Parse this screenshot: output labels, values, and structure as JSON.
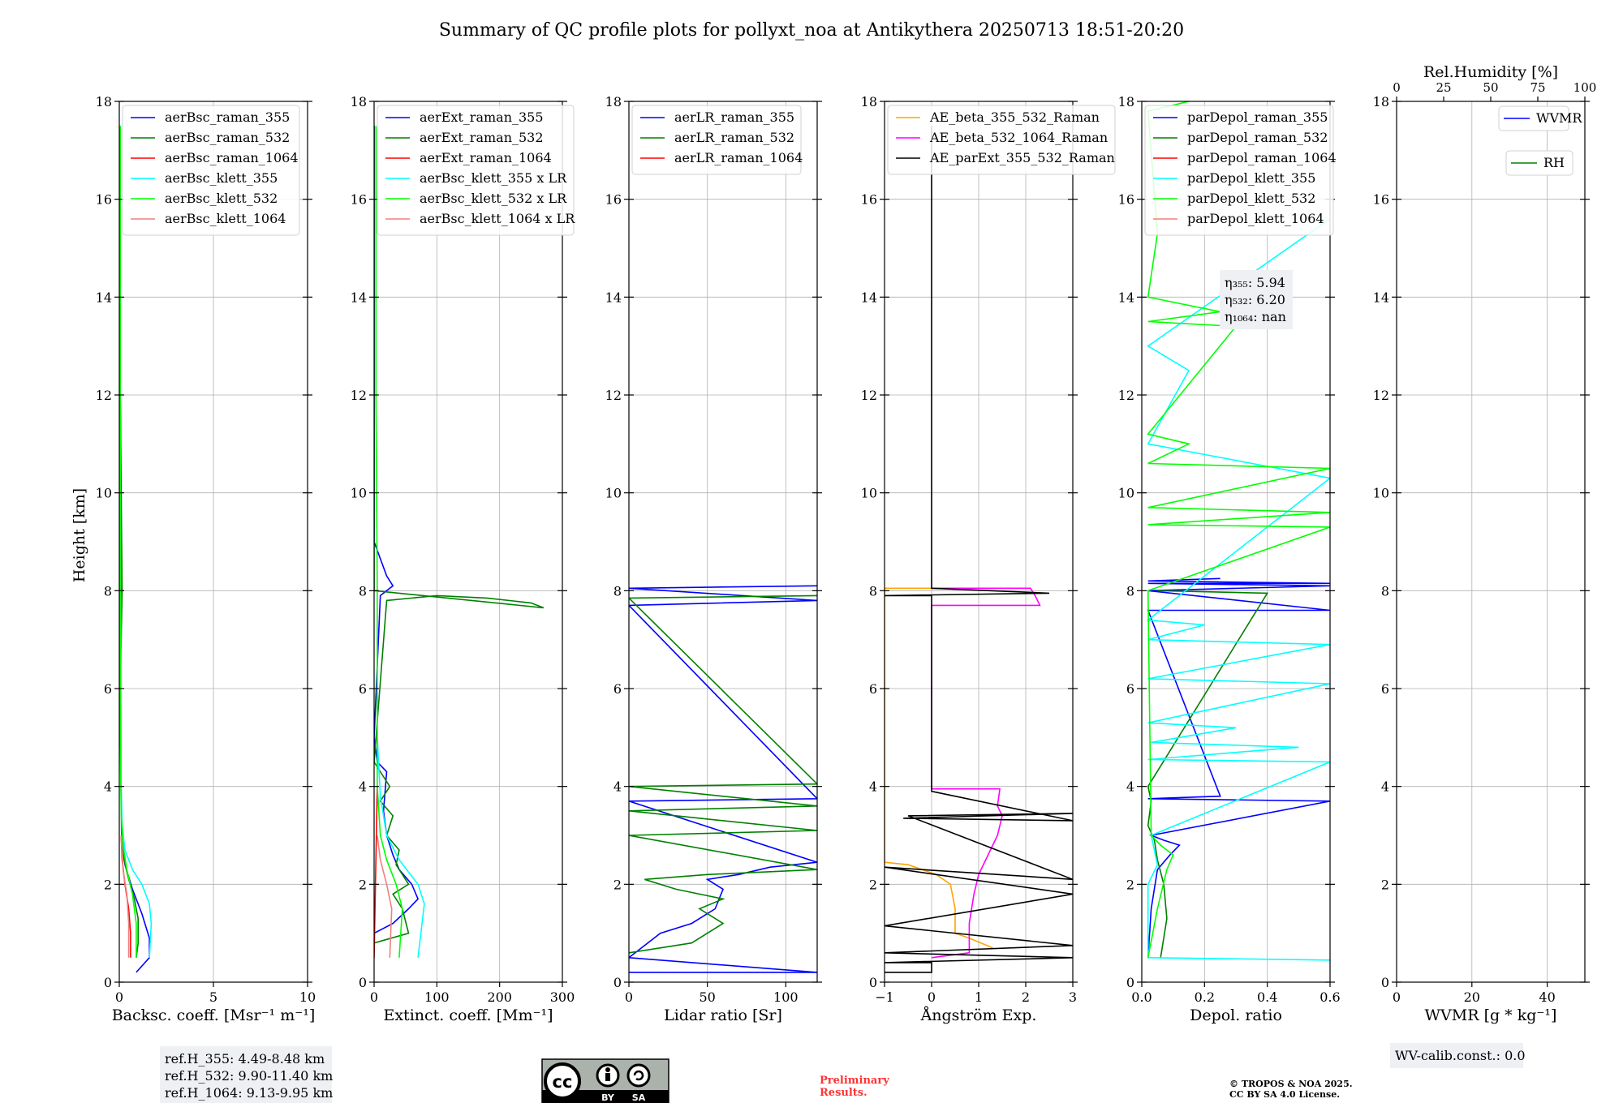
{
  "title": "Summary of QC profile plots for pollyxt_noa at Antikythera 20250713 18:51-20:20",
  "ylabel": "Height [km]",
  "chart_data": [
    {
      "type": "line",
      "xlabel": "Backsc. coeff. [Msr⁻¹ m⁻¹]",
      "xlim": [
        0,
        10
      ],
      "ylim": [
        0,
        18
      ],
      "xticks": [
        "0",
        "5",
        "10"
      ],
      "xtick_values": [
        0,
        5,
        10
      ],
      "yticks": [
        "0",
        "2",
        "4",
        "6",
        "8",
        "10",
        "12",
        "14",
        "16",
        "18"
      ],
      "grid": true,
      "legend_position": "top-left",
      "series": [
        {
          "name": "aerBsc_raman_355",
          "color": "#0000ff",
          "x": [
            0.9,
            1.6,
            1.6,
            1.2,
            0.7,
            0.3,
            0.15,
            0.1,
            0.05,
            0.1,
            0.05,
            0.05
          ],
          "y": [
            0.2,
            0.5,
            0.9,
            1.4,
            1.9,
            2.4,
            3.0,
            3.8,
            6.0,
            8.0,
            12.0,
            17.0
          ]
        },
        {
          "name": "aerBsc_raman_532",
          "color": "#008000",
          "x": [
            0.9,
            1.0,
            1.0,
            0.8,
            0.5,
            0.25,
            0.12,
            0.1,
            0.05,
            0.15,
            0.05,
            0.05
          ],
          "y": [
            0.5,
            0.8,
            1.3,
            1.7,
            2.1,
            2.5,
            3.0,
            3.8,
            6.0,
            8.0,
            12.0,
            17.5
          ]
        },
        {
          "name": "aerBsc_raman_1064",
          "color": "#ff0000",
          "x": [
            0.6,
            0.6,
            0.5,
            0.3,
            0.15,
            0.1
          ],
          "y": [
            0.5,
            1.0,
            1.5,
            2.0,
            2.5,
            3.0
          ]
        },
        {
          "name": "aerBsc_klett_355",
          "color": "#00ffff",
          "x": [
            1.6,
            1.7,
            1.6,
            1.2,
            0.7,
            0.3,
            0.15,
            0.1,
            0.05
          ],
          "y": [
            0.5,
            1.2,
            1.6,
            2.0,
            2.3,
            2.7,
            3.2,
            4.0,
            10.0
          ]
        },
        {
          "name": "aerBsc_klett_532",
          "color": "#00ff00",
          "x": [
            0.9,
            0.9,
            0.7,
            0.4,
            0.2,
            0.1,
            0.05,
            0.05
          ],
          "y": [
            0.5,
            1.2,
            1.8,
            2.3,
            2.8,
            3.5,
            5.0,
            17.5
          ]
        },
        {
          "name": "aerBsc_klett_1064",
          "color": "#f08080",
          "x": [
            0.5,
            0.5,
            0.4,
            0.2,
            0.1
          ],
          "y": [
            0.5,
            1.2,
            1.8,
            2.3,
            3.0
          ]
        }
      ],
      "annotation": [
        "ref.H_355: 4.49-8.48 km",
        "ref.H_532: 9.90-11.40 km",
        "ref.H_1064: 9.13-9.95 km"
      ]
    },
    {
      "type": "line",
      "xlabel": "Extinct. coeff. [Mm⁻¹]",
      "xlim": [
        0,
        300
      ],
      "ylim": [
        0,
        18
      ],
      "xticks": [
        "0",
        "100",
        "200",
        "300"
      ],
      "xtick_values": [
        0,
        100,
        200,
        300
      ],
      "yticks": [
        "0",
        "2",
        "4",
        "6",
        "8",
        "10",
        "12",
        "14",
        "16",
        "18"
      ],
      "grid": true,
      "legend_position": "top-left",
      "series": [
        {
          "name": "aerExt_raman_355",
          "color": "#0000ff",
          "x": [
            0,
            30,
            55,
            70,
            60,
            40,
            30,
            20,
            15,
            20,
            5,
            0,
            10,
            30,
            20,
            0,
            0
          ],
          "y": [
            1.0,
            1.2,
            1.5,
            1.7,
            2.0,
            2.3,
            2.6,
            3.0,
            3.5,
            4.3,
            4.5,
            5.0,
            7.9,
            8.1,
            8.3,
            9.0,
            17.5
          ]
        },
        {
          "name": "aerExt_raman_532",
          "color": "#008000",
          "x": [
            0,
            55,
            45,
            30,
            55,
            35,
            40,
            20,
            30,
            10,
            25,
            0,
            20,
            100,
            180,
            250,
            270,
            0,
            0
          ],
          "y": [
            0.8,
            1.0,
            1.5,
            1.8,
            2.0,
            2.4,
            2.7,
            3.0,
            3.4,
            3.7,
            4.0,
            4.5,
            7.8,
            7.9,
            7.85,
            7.75,
            7.65,
            8.0,
            17.5
          ]
        },
        {
          "name": "aerExt_raman_1064",
          "color": "#ff0000",
          "x": [
            0,
            5
          ],
          "y": [
            0.5,
            4.0
          ]
        },
        {
          "name": "aerBsc_klett_355 x LR",
          "color": "#00ffff",
          "x": [
            70,
            80,
            70,
            40,
            20,
            10,
            5
          ],
          "y": [
            0.5,
            1.6,
            2.0,
            2.5,
            3.0,
            3.8,
            5.0
          ]
        },
        {
          "name": "aerBsc_klett_532 x LR",
          "color": "#00ff00",
          "x": [
            40,
            45,
            35,
            20,
            10,
            5,
            5,
            3,
            3
          ],
          "y": [
            0.5,
            1.5,
            2.0,
            2.5,
            3.0,
            4.0,
            8.0,
            12.0,
            17.5
          ]
        },
        {
          "name": "aerBsc_klett_1064 x LR",
          "color": "#f08080",
          "x": [
            25,
            28,
            20,
            10,
            5
          ],
          "y": [
            0.5,
            1.5,
            2.0,
            2.5,
            3.0
          ]
        }
      ]
    },
    {
      "type": "line",
      "xlabel": "Lidar ratio [Sr]",
      "xlim": [
        0,
        120
      ],
      "ylim": [
        0,
        18
      ],
      "xticks": [
        "0",
        "50",
        "100"
      ],
      "xtick_values": [
        0,
        50,
        100
      ],
      "yticks": [
        "0",
        "2",
        "4",
        "6",
        "8",
        "10",
        "12",
        "14",
        "16",
        "18"
      ],
      "grid": true,
      "legend_position": "top-left",
      "series": [
        {
          "name": "aerLR_raman_355",
          "color": "#0000ff",
          "x": [
            0,
            120,
            0,
            20,
            40,
            55,
            60,
            50,
            70,
            90,
            120,
            0,
            120,
            0,
            120,
            0,
            120
          ],
          "y": [
            0.2,
            0.2,
            0.5,
            1.0,
            1.2,
            1.5,
            1.9,
            2.1,
            2.2,
            2.35,
            2.45,
            3.7,
            3.75,
            7.7,
            7.8,
            8.05,
            8.1
          ]
        },
        {
          "name": "aerLR_raman_532",
          "color": "#008000",
          "x": [
            0,
            40,
            60,
            45,
            60,
            30,
            10,
            50,
            120,
            0,
            120,
            0,
            120,
            0,
            120,
            0,
            120
          ],
          "y": [
            0.6,
            0.8,
            1.2,
            1.5,
            1.7,
            1.9,
            2.1,
            2.2,
            2.3,
            3.0,
            3.1,
            3.5,
            3.6,
            4.0,
            4.05,
            7.85,
            7.9
          ]
        },
        {
          "name": "aerLR_raman_1064",
          "color": "#ff0000",
          "x": [],
          "y": []
        }
      ]
    },
    {
      "type": "line",
      "xlabel": "Ångström Exp.",
      "xlim": [
        -1,
        3
      ],
      "ylim": [
        0,
        18
      ],
      "xticks": [
        "−1",
        "0",
        "1",
        "2",
        "3"
      ],
      "xtick_values": [
        -1,
        0,
        1,
        2,
        3
      ],
      "yticks": [
        "0",
        "2",
        "4",
        "6",
        "8",
        "10",
        "12",
        "14",
        "16",
        "18"
      ],
      "grid": true,
      "legend_position": "top-left",
      "series": [
        {
          "name": "AE_beta_355_532_Raman",
          "color": "#ffa500",
          "x": [
            1.3,
            0.8,
            0.5,
            0.5,
            0.4,
            0.1,
            -0.5,
            -1.0,
            -1.0,
            0.0
          ],
          "y": [
            0.7,
            0.9,
            1.0,
            1.5,
            2.0,
            2.2,
            2.4,
            2.45,
            8.05,
            8.05
          ]
        },
        {
          "name": "AE_beta_532_1064_Raman",
          "color": "#ff00ff",
          "x": [
            0.0,
            0.8,
            0.8,
            0.9,
            1.0,
            1.2,
            1.4,
            1.5,
            1.4,
            1.45,
            0.0,
            0.0,
            2.3,
            2.2,
            2.1,
            0.0
          ],
          "y": [
            0.5,
            0.6,
            1.2,
            1.8,
            2.2,
            2.6,
            3.0,
            3.4,
            3.6,
            3.95,
            3.95,
            7.7,
            7.7,
            7.9,
            8.05,
            8.05
          ]
        },
        {
          "name": "AE_parExt_355_532_Raman",
          "color": "#000000",
          "x": [
            -1,
            0,
            0,
            -1,
            3,
            -1,
            3,
            -1,
            3,
            -1,
            3,
            -0.5,
            3,
            -0.6,
            3,
            0.0,
            0.0,
            -1.0,
            2.5,
            0.0,
            0.0
          ],
          "y": [
            0.2,
            0.2,
            0.4,
            0.4,
            0.5,
            0.6,
            0.75,
            1.15,
            1.8,
            2.35,
            2.1,
            3.4,
            3.45,
            3.35,
            3.3,
            3.9,
            7.9,
            7.9,
            7.95,
            8.05,
            17.5
          ]
        }
      ]
    },
    {
      "type": "line",
      "xlabel": "Depol. ratio",
      "xlim": [
        0.0,
        0.6
      ],
      "ylim": [
        0,
        18
      ],
      "xticks": [
        "0.0",
        "0.2",
        "0.4",
        "0.6"
      ],
      "xtick_values": [
        0.0,
        0.2,
        0.4,
        0.6
      ],
      "yticks": [
        "0",
        "2",
        "4",
        "6",
        "8",
        "10",
        "12",
        "14",
        "16",
        "18"
      ],
      "grid": true,
      "legend_position": "top-left",
      "series": [
        {
          "name": "parDepol_raman_355",
          "color": "#0000ff",
          "x": [
            0.02,
            0.03,
            0.05,
            0.09,
            0.12,
            0.07,
            0.03,
            0.6,
            0.02,
            0.25,
            0.02,
            0.6,
            0.02,
            0.6,
            0.02,
            0.6,
            0.02,
            0.25
          ],
          "y": [
            0.5,
            1.5,
            2.3,
            2.6,
            2.8,
            2.9,
            3.0,
            3.7,
            3.75,
            3.8,
            7.6,
            7.6,
            8.0,
            8.1,
            8.15,
            8.15,
            8.2,
            8.25
          ]
        },
        {
          "name": "parDepol_raman_532",
          "color": "#008000",
          "x": [
            0.06,
            0.08,
            0.07,
            0.05,
            0.04,
            0.02,
            0.03,
            0.02,
            0.4,
            0.05
          ],
          "y": [
            0.5,
            1.3,
            2.0,
            2.5,
            2.9,
            3.2,
            3.7,
            4.0,
            7.95,
            8.0
          ]
        },
        {
          "name": "parDepol_raman_1064",
          "color": "#ff0000",
          "x": [],
          "y": []
        },
        {
          "name": "parDepol_klett_355",
          "color": "#00ffff",
          "x": [
            0.6,
            0.02,
            0.02,
            0.05,
            0.03,
            0.6,
            0.02,
            0.5,
            0.03,
            0.3,
            0.02,
            0.6,
            0.02,
            0.6,
            0.02,
            0.2,
            0.02,
            0.6,
            0.02,
            0.15,
            0.02,
            0.6
          ],
          "y": [
            0.45,
            0.5,
            2.0,
            2.4,
            3.0,
            4.5,
            4.55,
            4.8,
            4.9,
            5.2,
            5.3,
            6.1,
            6.2,
            6.9,
            7.0,
            7.3,
            7.4,
            10.3,
            11.0,
            12.5,
            13.0,
            15.6
          ]
        },
        {
          "name": "parDepol_klett_532",
          "color": "#00ff00",
          "x": [
            0.02,
            0.05,
            0.08,
            0.1,
            0.06,
            0.03,
            0.02,
            0.6,
            0.02,
            0.6,
            0.02,
            0.6,
            0.02,
            0.15,
            0.02,
            0.3,
            0.02,
            0.25,
            0.02,
            0.05,
            0.02,
            0.15
          ],
          "y": [
            0.5,
            1.5,
            2.3,
            2.6,
            2.8,
            3.0,
            8.0,
            9.3,
            9.35,
            9.6,
            9.7,
            10.5,
            10.6,
            11.0,
            11.2,
            13.4,
            13.5,
            13.7,
            14.0,
            15.3,
            17.8,
            18.0
          ]
        },
        {
          "name": "parDepol_klett_1064",
          "color": "#f08080",
          "x": [],
          "y": []
        }
      ],
      "annotation": [
        "η₃₅₅: 5.94",
        "η₅₃₂: 6.20",
        "η₁₀₆₄: nan"
      ]
    },
    {
      "type": "line",
      "xlabel": "WVMR [g * kg⁻¹]",
      "xlim": [
        0,
        50
      ],
      "ylim": [
        0,
        18
      ],
      "xticks": [
        "0",
        "20",
        "40"
      ],
      "xtick_values": [
        0,
        20,
        40
      ],
      "yticks": [
        "0",
        "2",
        "4",
        "6",
        "8",
        "10",
        "12",
        "14",
        "16",
        "18"
      ],
      "top_axis": {
        "label": "Rel.Humidity [%]",
        "lim": [
          0,
          100
        ],
        "ticks": [
          "0",
          "25",
          "50",
          "75",
          "100"
        ],
        "tick_values": [
          0,
          25,
          50,
          75,
          100
        ]
      },
      "grid": true,
      "legend_position": "top-right",
      "series": [
        {
          "name": "WVMR",
          "color": "#0000ff",
          "x": [],
          "y": []
        },
        {
          "name": "RH",
          "color": "#008000",
          "x": [],
          "y": []
        }
      ],
      "annotation": [
        "WV-calib.const.: 0.0"
      ]
    }
  ],
  "footer": {
    "license_badge": {
      "symbols": [
        "cc",
        "by",
        "sa"
      ],
      "labels": [
        "BY",
        "SA"
      ],
      "colors": {
        "body": "#aab2ab",
        "band": "#000000"
      }
    },
    "preliminary_line1": "Preliminary",
    "preliminary_line2": "Results.",
    "copyright_line1": "© TROPOS & NOA 2025.",
    "copyright_line2": "CC BY SA 4.0 License."
  }
}
